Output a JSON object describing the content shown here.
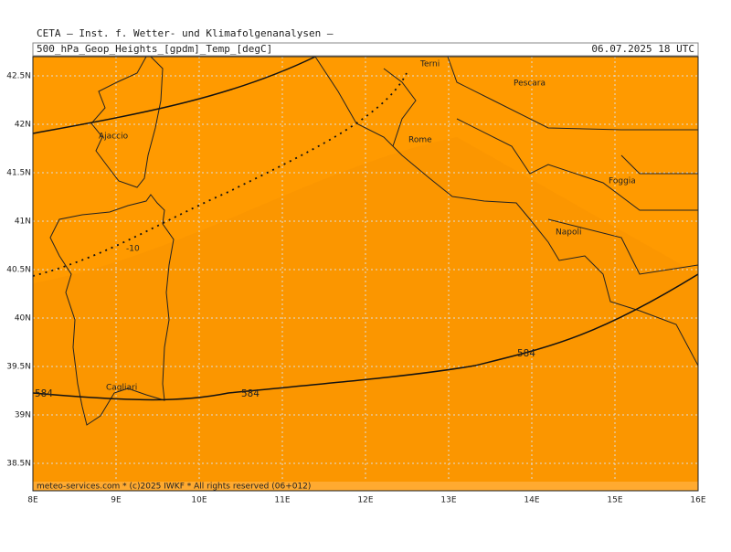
{
  "header": {
    "title": "CETA — Inst. f. Wetter- und Klimafolgenanalysen —",
    "subtitle": "500_hPa_Geop_Heights_[gpdm]_Temp_[degC]",
    "date": "06.07.2025 18 UTC"
  },
  "axes": {
    "lon_labels": [
      "8E",
      "9E",
      "10E",
      "11E",
      "12E",
      "13E",
      "14E",
      "15E",
      "16E"
    ],
    "lat_labels": [
      "42.5N",
      "42N",
      "41.5N",
      "41N",
      "40.5N",
      "40N",
      "39.5N",
      "39N",
      "38.5N"
    ]
  },
  "places": [
    "Terni",
    "Pescara",
    "Ajaccio",
    "Rome",
    "Foggia",
    "Napoli",
    "Cagliari"
  ],
  "contour_labels": [
    "584",
    "584",
    "584",
    "-10"
  ],
  "footer": "meteo-services.com * (c)2025 IWKF * All rights reserved (06+012)"
}
